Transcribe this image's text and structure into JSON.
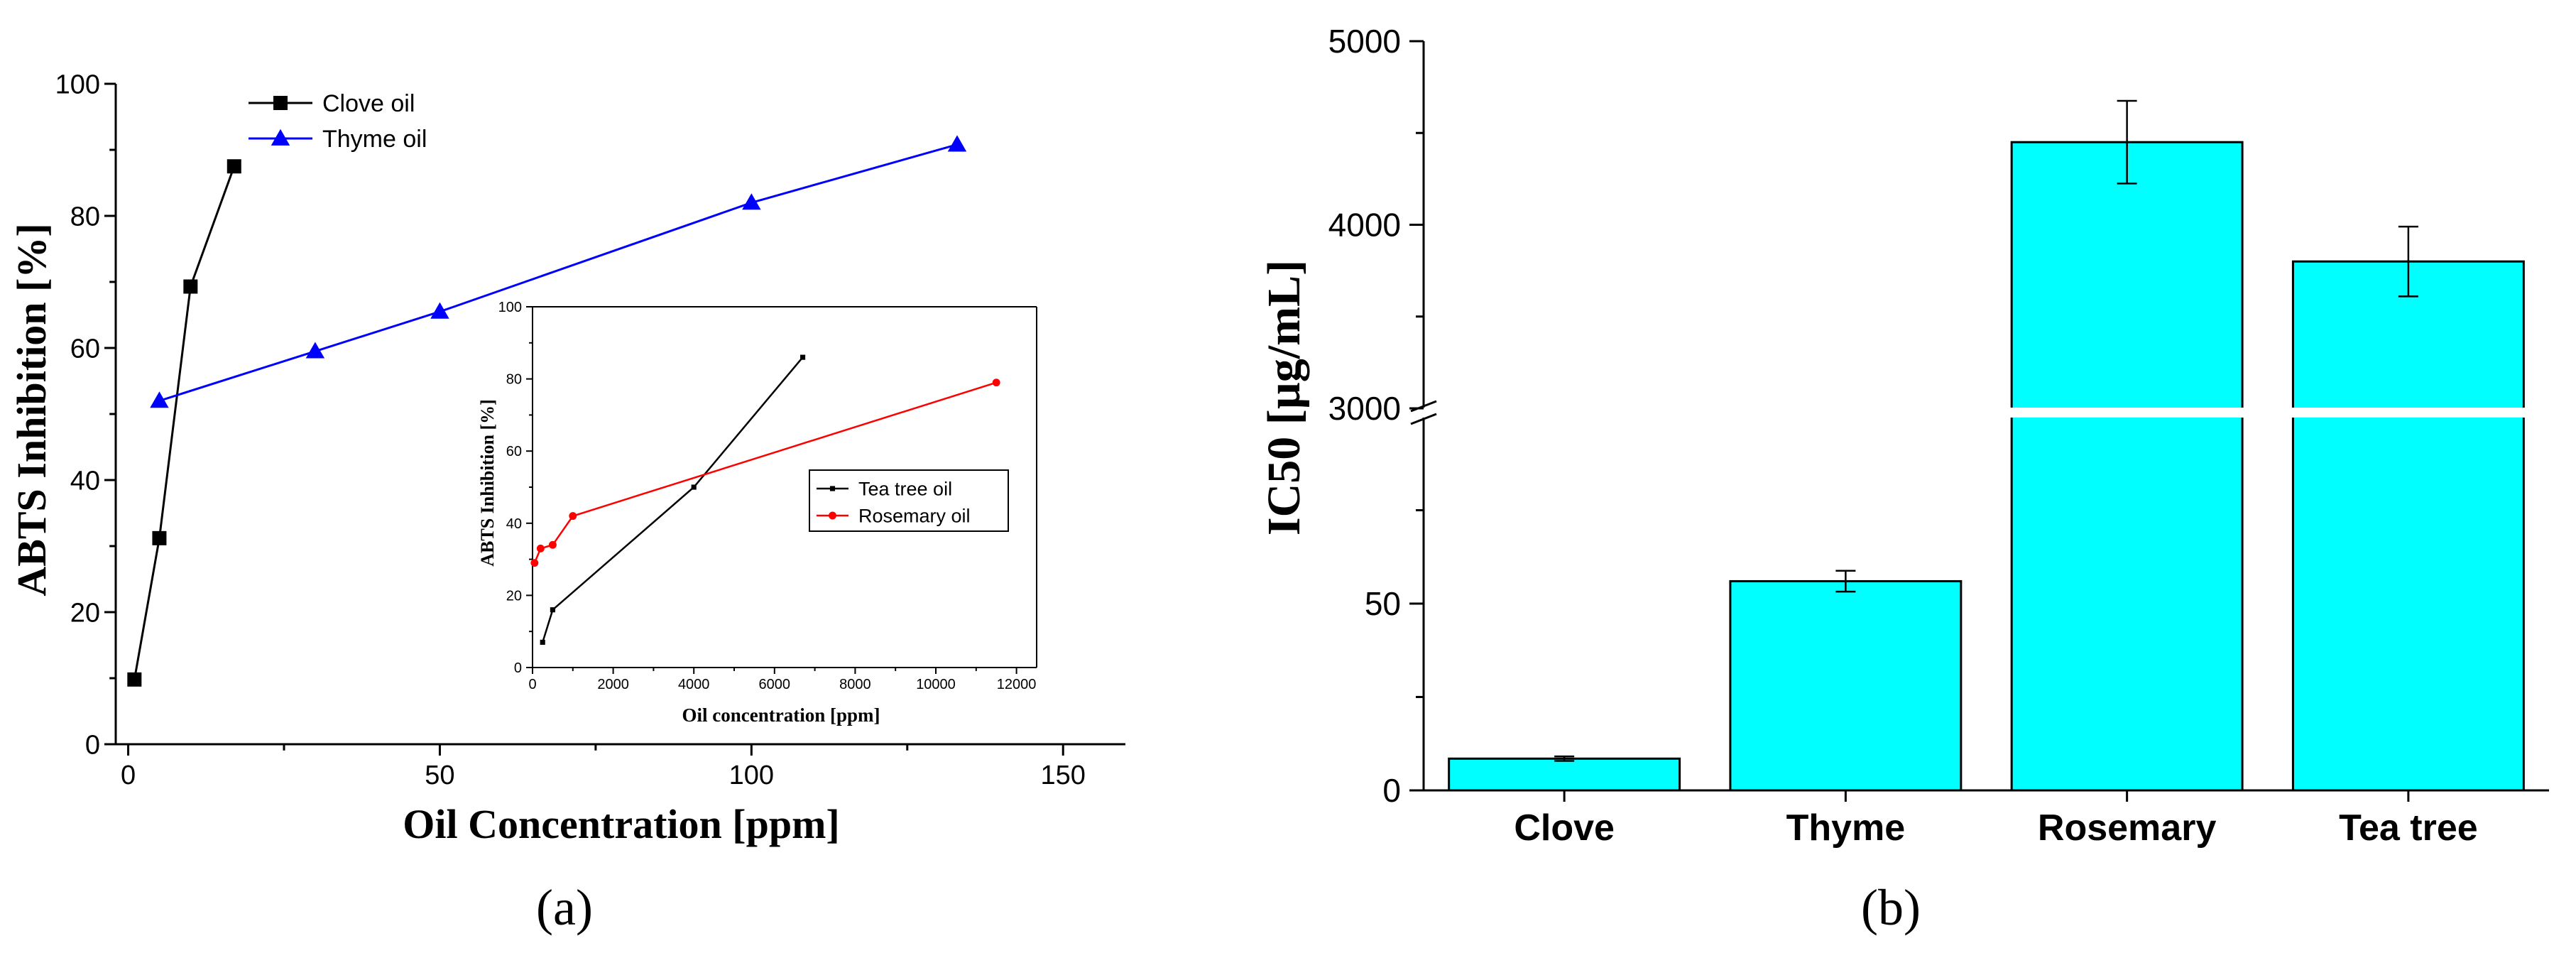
{
  "panel_labels": {
    "a": "(a)",
    "b": "(b)"
  },
  "chart_data": [
    {
      "id": "a-main",
      "type": "line",
      "xlabel": "Oil Concentration [ppm]",
      "ylabel": "ABTS Inhibition [%]",
      "xlim": [
        -2,
        160
      ],
      "ylim": [
        0,
        100
      ],
      "xticks": [
        0,
        50,
        100,
        150
      ],
      "yticks": [
        0,
        20,
        40,
        60,
        80,
        100
      ],
      "grid": false,
      "legend": "top-left",
      "series": [
        {
          "name": "Clove oil",
          "color": "#000000",
          "marker": "square",
          "x": [
            1,
            5,
            10,
            17
          ],
          "y": [
            9.8,
            31.2,
            69.3,
            87.5
          ]
        },
        {
          "name": "Thyme oil",
          "color": "#0000ff",
          "marker": "triangle",
          "x": [
            5,
            30,
            50,
            100,
            133
          ],
          "y": [
            52,
            59.5,
            65.5,
            82,
            90.8
          ]
        }
      ]
    },
    {
      "id": "a-inset",
      "type": "line",
      "xlabel": "Oil concentration [ppm]",
      "ylabel": "ABTS Inhibition [%]",
      "xlim": [
        0,
        12500
      ],
      "ylim": [
        0,
        100
      ],
      "xticks": [
        0,
        2000,
        4000,
        6000,
        8000,
        10000,
        12000
      ],
      "yticks": [
        0,
        20,
        40,
        60,
        80,
        100
      ],
      "grid": false,
      "legend": "center-right",
      "series": [
        {
          "name": "Tea tree oil",
          "color": "#000000",
          "marker": "square-small",
          "x": [
            250,
            500,
            4000,
            6700
          ],
          "y": [
            7,
            16,
            50,
            86
          ]
        },
        {
          "name": "Rosemary oil",
          "color": "#ff0000",
          "marker": "circle",
          "x": [
            50,
            200,
            500,
            1000,
            11500
          ],
          "y": [
            29,
            33,
            34,
            42,
            79
          ]
        }
      ]
    },
    {
      "id": "b",
      "type": "bar",
      "ylabel": "IC50 [µg/mL]",
      "categories": [
        "Clove",
        "Thyme",
        "Rosemary",
        "Tea tree"
      ],
      "values": [
        8.5,
        56,
        4450,
        3800
      ],
      "errors": [
        0.6,
        2.8,
        225,
        190
      ],
      "bar_color": "#00ffff",
      "axis_break": {
        "lower": [
          0,
          100
        ],
        "upper": [
          3000,
          5000
        ]
      },
      "yticks_lower": [
        0,
        50
      ],
      "yticks_upper": [
        3000,
        4000,
        5000
      ],
      "grid": false
    }
  ]
}
